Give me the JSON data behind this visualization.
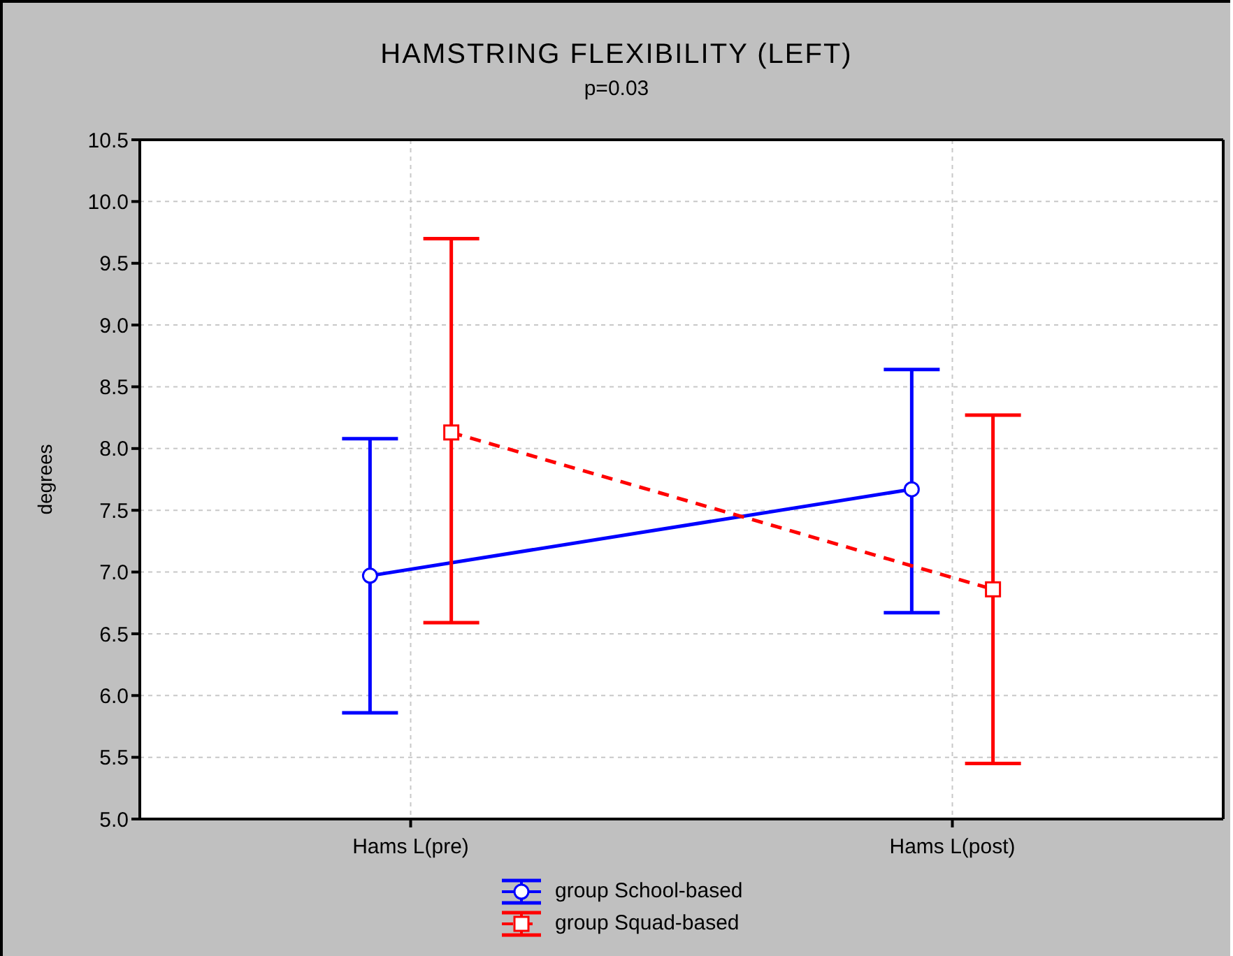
{
  "chart_data": {
    "type": "line",
    "title": "HAMSTRING FLEXIBILITY (LEFT)",
    "subtitle": "p=0.03",
    "ylabel": "degrees",
    "categories": [
      "Hams L(pre)",
      "Hams L(post)"
    ],
    "series": [
      {
        "name": "group School-based",
        "color": "#0000ff",
        "values": [
          6.97,
          7.67
        ],
        "errors": [
          [
            5.86,
            8.08
          ],
          [
            6.67,
            8.64
          ]
        ],
        "marker": "circle",
        "line_style": "solid"
      },
      {
        "name": "group Squad-based",
        "color": "#ff0000",
        "values": [
          8.13,
          6.86
        ],
        "errors": [
          [
            6.59,
            9.7
          ],
          [
            5.45,
            8.27
          ]
        ],
        "marker": "square",
        "line_style": "dashed"
      }
    ],
    "ylim": [
      5.0,
      10.5
    ],
    "yticks": [
      {
        "value": 5,
        "label": "5.0"
      },
      5.5,
      {
        "value": 6,
        "label": "6.0"
      },
      6.5,
      {
        "value": 7,
        "label": "7.0"
      },
      7.5,
      {
        "value": 8,
        "label": "8.0"
      },
      8.5,
      {
        "value": 9,
        "label": "9.0"
      },
      9.5,
      {
        "value": 10,
        "label": "10.0"
      },
      10.5
    ],
    "grid": true,
    "legend": "bottom"
  }
}
